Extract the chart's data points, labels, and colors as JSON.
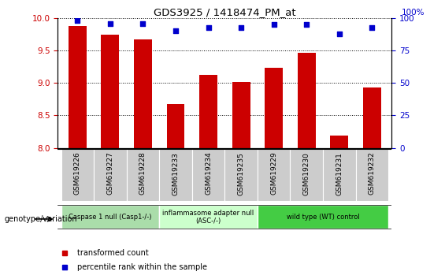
{
  "title": "GDS3925 / 1418474_PM_at",
  "samples": [
    "GSM619226",
    "GSM619227",
    "GSM619228",
    "GSM619233",
    "GSM619234",
    "GSM619235",
    "GSM619229",
    "GSM619230",
    "GSM619231",
    "GSM619232"
  ],
  "bar_values": [
    9.88,
    9.75,
    9.67,
    8.68,
    9.13,
    9.02,
    9.23,
    9.47,
    8.19,
    8.93
  ],
  "dot_values": [
    98,
    96,
    96,
    90,
    93,
    93,
    95,
    95,
    88,
    93
  ],
  "ylim": [
    8.0,
    10.0
  ],
  "y2lim": [
    0,
    100
  ],
  "yticks": [
    8.0,
    8.5,
    9.0,
    9.5,
    10.0
  ],
  "y2ticks": [
    0,
    25,
    50,
    75,
    100
  ],
  "bar_color": "#CC0000",
  "dot_color": "#0000CC",
  "groups": [
    {
      "label": "Caspase 1 null (Casp1-/-)",
      "start": 0,
      "end": 3,
      "color": "#aaddaa"
    },
    {
      "label": "inflammasome adapter null\n(ASC-/-)",
      "start": 3,
      "end": 6,
      "color": "#ccffcc"
    },
    {
      "label": "wild type (WT) control",
      "start": 6,
      "end": 10,
      "color": "#44cc44"
    }
  ],
  "xlabel_genotype": "genotype/variation",
  "legend_bar": "transformed count",
  "legend_dot": "percentile rank within the sample",
  "tick_bg_color": "#cccccc",
  "ylabel_color": "#CC0000",
  "y2label_color": "#0000CC",
  "y2label": "100%",
  "fig_bg": "#ffffff"
}
